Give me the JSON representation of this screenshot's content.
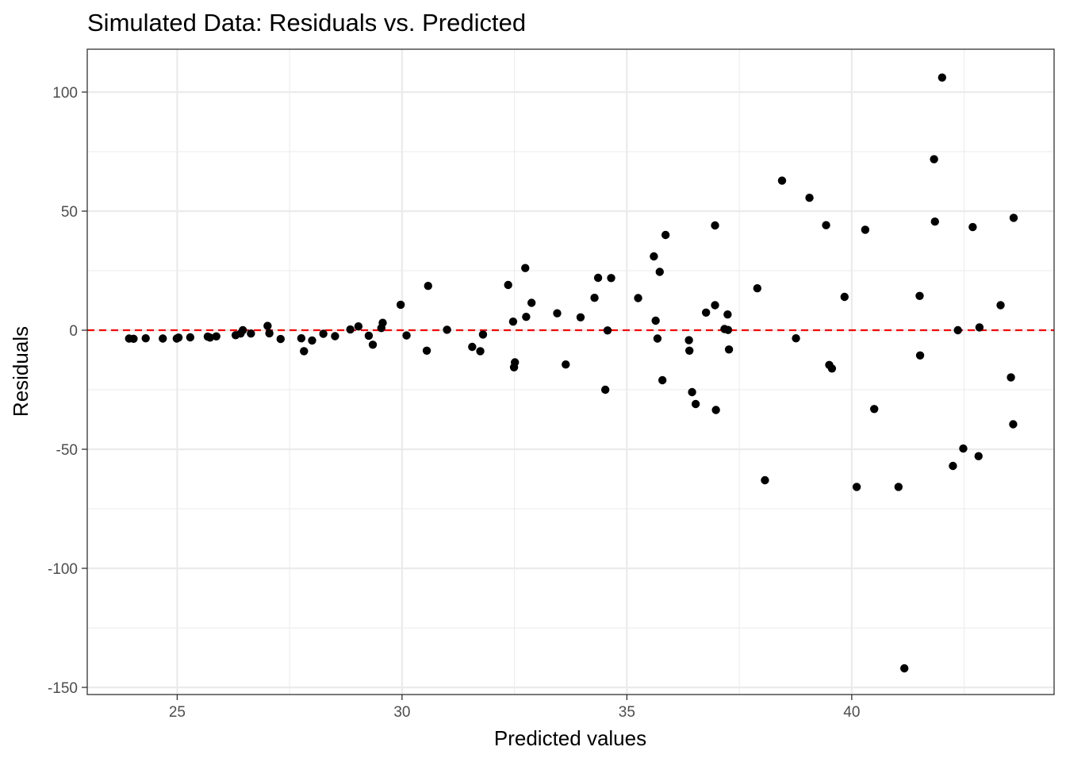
{
  "chart_data": {
    "type": "scatter",
    "title": "Simulated Data: Residuals vs. Predicted",
    "xlabel": "Predicted values",
    "ylabel": "Residuals",
    "xlim": [
      23.0,
      44.5
    ],
    "ylim": [
      -153,
      118
    ],
    "x_ticks": [
      25,
      30,
      35,
      40
    ],
    "y_ticks": [
      100,
      50,
      0,
      -50,
      -100,
      -150
    ],
    "x_tick_labels": [
      "25",
      "30",
      "35",
      "40"
    ],
    "y_tick_labels": [
      "100",
      "50",
      "0",
      "-50",
      "-100",
      "-150"
    ],
    "grid": true,
    "reference_line": {
      "y": 0,
      "style": "dashed",
      "color": "#ff0000"
    },
    "colors": {
      "points": "#000000",
      "panel_border": "#333333",
      "grid": "#ebebeb",
      "tick_text": "#4d4d4d"
    },
    "series": [
      {
        "x": [
          23.93,
          24.03,
          24.3,
          24.68,
          24.99,
          25.03,
          25.29,
          25.68,
          25.73,
          25.87,
          26.3,
          26.41,
          26.46,
          26.64,
          27.01,
          27.05,
          27.3,
          27.76,
          27.82,
          28.0,
          28.25,
          28.51,
          28.85,
          29.03,
          29.26,
          29.35,
          29.54,
          29.57,
          29.97,
          30.1,
          30.55,
          30.58,
          31.0,
          31.56,
          31.74,
          31.8,
          32.36,
          32.47,
          32.51,
          32.49,
          32.74,
          32.76,
          32.88,
          33.45,
          33.64,
          33.97,
          34.28,
          34.36,
          34.52,
          34.57,
          34.65,
          35.25,
          35.6,
          35.64,
          35.68,
          35.73,
          35.79,
          35.86,
          36.38,
          36.39,
          36.45,
          36.53,
          36.76,
          36.96,
          36.98,
          36.96,
          37.17,
          37.24,
          37.27,
          37.25,
          37.9,
          38.07,
          38.45,
          38.76,
          39.06,
          39.43,
          39.5,
          39.56,
          39.84,
          40.11,
          40.3,
          40.5,
          41.04,
          41.17,
          41.51,
          41.52,
          41.83,
          41.85,
          42.01,
          42.25,
          42.36,
          42.48,
          42.69,
          42.82,
          42.84,
          43.31,
          43.54,
          43.59,
          43.6
        ],
        "y": [
          -3.5,
          -3.6,
          -3.4,
          -3.5,
          -3.5,
          -3.1,
          -3.0,
          -2.7,
          -3.1,
          -2.6,
          -2.1,
          -1.4,
          0.0,
          -1.4,
          1.8,
          -1.3,
          -3.7,
          -3.4,
          -8.8,
          -4.3,
          -1.5,
          -2.5,
          0.3,
          1.6,
          -2.3,
          -6.1,
          0.9,
          3.1,
          10.7,
          -2.2,
          -8.6,
          18.6,
          0.2,
          -7.0,
          -8.8,
          -1.8,
          19.0,
          3.6,
          -13.5,
          -15.6,
          26.1,
          5.6,
          11.5,
          7.1,
          -14.4,
          5.4,
          13.6,
          22.0,
          -25.0,
          -0.1,
          21.9,
          13.5,
          31.0,
          4.0,
          -3.5,
          24.5,
          -21.0,
          40.0,
          -4.2,
          -8.6,
          -26.0,
          -31.0,
          7.4,
          10.5,
          -33.5,
          44.0,
          0.5,
          6.6,
          -8.1,
          0.1,
          17.6,
          -63.0,
          62.8,
          -3.4,
          55.6,
          44.1,
          -14.6,
          -16.1,
          14.0,
          -65.8,
          42.2,
          -33.1,
          -65.8,
          -142.0,
          14.4,
          -10.6,
          71.8,
          45.6,
          106.1,
          -57.0,
          0.0,
          -49.7,
          43.3,
          -52.9,
          1.2,
          10.5,
          -19.8,
          -39.5,
          47.2
        ]
      }
    ]
  }
}
